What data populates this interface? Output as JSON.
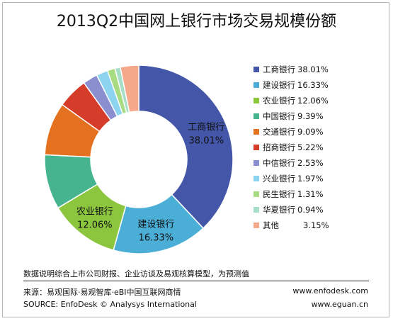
{
  "chart_data": {
    "type": "pie",
    "title": "2013Q2中国网上银行市场交易规模份额",
    "categories": [
      "工商银行",
      "建设银行",
      "农业银行",
      "中国银行",
      "交通银行",
      "招商银行",
      "中信银行",
      "兴业银行",
      "民生银行",
      "华夏银行",
      "其他"
    ],
    "values": [
      38.01,
      16.33,
      12.06,
      9.39,
      9.09,
      5.22,
      2.53,
      1.97,
      1.31,
      0.94,
      3.15
    ],
    "value_labels": [
      "38.01%",
      "16.33%",
      "12.06%",
      "9.39%",
      "9.09%",
      "5.22%",
      "2.53%",
      "1.97%",
      "1.31%",
      "0.94%",
      "3.15%"
    ],
    "colors": [
      "#4356a8",
      "#4aaed6",
      "#8cc63f",
      "#46b58f",
      "#e3711f",
      "#d63c2a",
      "#8b8fcf",
      "#8cd4f0",
      "#a8db82",
      "#a7dec8",
      "#f5a88a"
    ],
    "labeled_slices": [
      0,
      1,
      2
    ],
    "donut": true,
    "legend_position": "right"
  },
  "footer": {
    "note": "数据说明综合上市公司财报、企业访谈及易观核算模型，为预测值",
    "source_cn": "来源：易观国际·易观智库·eBI中国互联网商情",
    "source_en": "SOURCE: EnfoDesk © Analysys International",
    "site1": "www.enfodesk.com",
    "site2": "www.eguan.cn"
  }
}
